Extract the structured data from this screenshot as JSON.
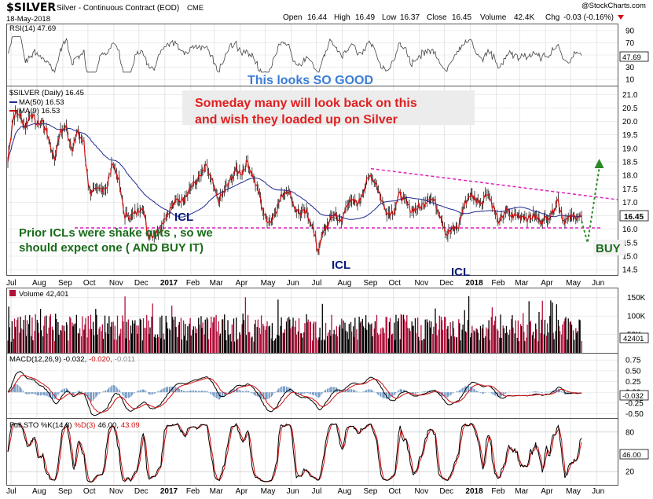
{
  "header": {
    "title": "$SILVER",
    "subtitle": "Silver - Continuous Contract (EOD)",
    "exchange": "CME",
    "date": "18-May-2018",
    "open_label": "Open",
    "open": "16.44",
    "high_label": "High",
    "high": "16.49",
    "low_label": "Low",
    "low": "16.37",
    "close_label": "Close",
    "close": "16.45",
    "volume_label": "Volume",
    "volume": "42.4K",
    "chg_label": "Chg",
    "chg": "-0.03 (-0.16%)",
    "logo": "@StockCharts.com"
  },
  "rsi_panel": {
    "label": "RSI(14) 47.69",
    "ticks": [
      "90",
      "70",
      "50",
      "30",
      "10"
    ],
    "last_badge": "47.69"
  },
  "price_panel": {
    "label": "$SILVER (Daily) 16.45",
    "legend": [
      {
        "text": "MA(50) 16.53",
        "color": "#1f2a8f"
      },
      {
        "text": "MA(9) 16.53",
        "color": "#d01010"
      }
    ],
    "ticks": [
      "21.0",
      "20.5",
      "20.0",
      "19.5",
      "19.0",
      "18.5",
      "18.0",
      "17.5",
      "17.0",
      "16.5",
      "16.0",
      "15.5",
      "15.0",
      "14.5"
    ],
    "last_badge": "16.45"
  },
  "volume_panel": {
    "label": "Volume 42,401",
    "ticks": [
      "150K",
      "100K",
      "50K"
    ],
    "last_badge": "42401"
  },
  "macd_panel": {
    "label_main": "MACD(12,26,9) -0.032,",
    "label_red": "-0.020,",
    "label_gray": "-0.011",
    "ticks": [
      "0.75",
      "0.50",
      "0.25",
      "0.00",
      "-0.25",
      "-0.50"
    ],
    "last_badge": "-0.032"
  },
  "sto_panel": {
    "label_main": "Full STO %K(14,3)",
    "label_red": "%D(3)",
    "label_val1": "46.00,",
    "label_val2": "43.09",
    "ticks": [
      "80",
      "20"
    ],
    "last_badge": "46.00"
  },
  "x_axis": {
    "labels": [
      {
        "text": "Jul",
        "bold": false
      },
      {
        "text": "Aug",
        "bold": false
      },
      {
        "text": "Sep",
        "bold": false
      },
      {
        "text": "Oct",
        "bold": false
      },
      {
        "text": "Nov",
        "bold": false
      },
      {
        "text": "Dec",
        "bold": false
      },
      {
        "text": "2017",
        "bold": true
      },
      {
        "text": "Feb",
        "bold": false
      },
      {
        "text": "Mar",
        "bold": false
      },
      {
        "text": "Apr",
        "bold": false
      },
      {
        "text": "May",
        "bold": false
      },
      {
        "text": "Jun",
        "bold": false
      },
      {
        "text": "Jul",
        "bold": false
      },
      {
        "text": "Aug",
        "bold": false
      },
      {
        "text": "Sep",
        "bold": false
      },
      {
        "text": "Oct",
        "bold": false
      },
      {
        "text": "Nov",
        "bold": false
      },
      {
        "text": "Dec",
        "bold": false
      },
      {
        "text": "2018",
        "bold": true
      },
      {
        "text": "Feb",
        "bold": false
      },
      {
        "text": "Mar",
        "bold": false
      },
      {
        "text": "Apr",
        "bold": false
      },
      {
        "text": "May",
        "bold": false
      },
      {
        "text": "Jun",
        "bold": false
      }
    ]
  },
  "annotations": {
    "rsi_note": "This looks SO GOOD",
    "red_note_1": "Someday many will look back on this",
    "red_note_2": "and wish they loaded up on Silver",
    "green_note_1": "Prior ICLs were shake outs , so we",
    "green_note_2": "should expect one ( AND BUY IT)",
    "icl_1": "ICL",
    "icl_2": "ICL",
    "icl_3": "ICL",
    "buy": "BUY"
  },
  "colors": {
    "price_line": "#d01010",
    "bar_ticks": "#000000",
    "ma50": "#1f2a8f",
    "ma9": "#d01010",
    "support_line": "#e020c0",
    "resistance_line": "#e020c0",
    "volume_up": "#000000",
    "volume_down": "#b0103a",
    "macd_line": "#000000",
    "signal_line": "#d01010",
    "histogram": "#7aa0c8",
    "buy_arrow": "#2a8a2a"
  },
  "chart_data": {
    "type": "line",
    "symbol": "$SILVER",
    "x_range": [
      "2016-07",
      "2018-05-18"
    ],
    "price_ylim": [
      14.3,
      21.3
    ],
    "price_points": [
      {
        "date": "2016-07-01",
        "close": 18.5
      },
      {
        "date": "2016-07-08",
        "close": 20.2
      },
      {
        "date": "2016-07-15",
        "close": 20.3
      },
      {
        "date": "2016-07-22",
        "close": 19.8
      },
      {
        "date": "2016-07-29",
        "close": 20.3
      },
      {
        "date": "2016-08-05",
        "close": 19.9
      },
      {
        "date": "2016-08-12",
        "close": 20.0
      },
      {
        "date": "2016-08-19",
        "close": 19.4
      },
      {
        "date": "2016-08-26",
        "close": 18.6
      },
      {
        "date": "2016-09-02",
        "close": 19.6
      },
      {
        "date": "2016-09-09",
        "close": 19.8
      },
      {
        "date": "2016-09-16",
        "close": 19.0
      },
      {
        "date": "2016-09-23",
        "close": 19.6
      },
      {
        "date": "2016-09-30",
        "close": 19.2
      },
      {
        "date": "2016-10-07",
        "close": 17.4
      },
      {
        "date": "2016-10-14",
        "close": 17.4
      },
      {
        "date": "2016-10-21",
        "close": 17.5
      },
      {
        "date": "2016-10-28",
        "close": 17.6
      },
      {
        "date": "2016-11-04",
        "close": 18.5
      },
      {
        "date": "2016-11-11",
        "close": 17.8
      },
      {
        "date": "2016-11-18",
        "close": 16.5
      },
      {
        "date": "2016-11-25",
        "close": 16.5
      },
      {
        "date": "2016-12-02",
        "close": 16.6
      },
      {
        "date": "2016-12-09",
        "close": 16.9
      },
      {
        "date": "2016-12-16",
        "close": 15.8
      },
      {
        "date": "2016-12-23",
        "close": 15.8
      },
      {
        "date": "2016-12-30",
        "close": 16.0
      },
      {
        "date": "2017-01-06",
        "close": 16.5
      },
      {
        "date": "2017-01-13",
        "close": 16.8
      },
      {
        "date": "2017-01-20",
        "close": 17.1
      },
      {
        "date": "2017-01-27",
        "close": 17.1
      },
      {
        "date": "2017-02-03",
        "close": 17.5
      },
      {
        "date": "2017-02-10",
        "close": 17.7
      },
      {
        "date": "2017-02-17",
        "close": 18.0
      },
      {
        "date": "2017-02-24",
        "close": 18.3
      },
      {
        "date": "2017-03-03",
        "close": 17.7
      },
      {
        "date": "2017-03-10",
        "close": 17.0
      },
      {
        "date": "2017-03-17",
        "close": 17.4
      },
      {
        "date": "2017-03-24",
        "close": 17.8
      },
      {
        "date": "2017-03-31",
        "close": 18.2
      },
      {
        "date": "2017-04-07",
        "close": 18.1
      },
      {
        "date": "2017-04-14",
        "close": 18.5
      },
      {
        "date": "2017-04-21",
        "close": 17.9
      },
      {
        "date": "2017-04-28",
        "close": 17.3
      },
      {
        "date": "2017-05-05",
        "close": 16.4
      },
      {
        "date": "2017-05-12",
        "close": 16.3
      },
      {
        "date": "2017-05-19",
        "close": 16.8
      },
      {
        "date": "2017-05-26",
        "close": 17.3
      },
      {
        "date": "2017-06-02",
        "close": 17.5
      },
      {
        "date": "2017-06-09",
        "close": 16.8
      },
      {
        "date": "2017-06-16",
        "close": 16.6
      },
      {
        "date": "2017-06-23",
        "close": 16.6
      },
      {
        "date": "2017-06-30",
        "close": 16.2
      },
      {
        "date": "2017-07-07",
        "close": 15.2
      },
      {
        "date": "2017-07-14",
        "close": 15.9
      },
      {
        "date": "2017-07-21",
        "close": 16.3
      },
      {
        "date": "2017-07-28",
        "close": 16.6
      },
      {
        "date": "2017-08-04",
        "close": 16.2
      },
      {
        "date": "2017-08-11",
        "close": 17.0
      },
      {
        "date": "2017-08-18",
        "close": 17.0
      },
      {
        "date": "2017-08-25",
        "close": 17.0
      },
      {
        "date": "2017-09-01",
        "close": 17.6
      },
      {
        "date": "2017-09-08",
        "close": 18.0
      },
      {
        "date": "2017-09-15",
        "close": 17.7
      },
      {
        "date": "2017-09-22",
        "close": 17.0
      },
      {
        "date": "2017-09-29",
        "close": 16.6
      },
      {
        "date": "2017-10-06",
        "close": 16.7
      },
      {
        "date": "2017-10-13",
        "close": 17.3
      },
      {
        "date": "2017-10-20",
        "close": 17.0
      },
      {
        "date": "2017-10-27",
        "close": 16.7
      },
      {
        "date": "2017-11-03",
        "close": 16.8
      },
      {
        "date": "2017-11-10",
        "close": 16.9
      },
      {
        "date": "2017-11-17",
        "close": 17.2
      },
      {
        "date": "2017-11-24",
        "close": 17.0
      },
      {
        "date": "2017-12-01",
        "close": 16.5
      },
      {
        "date": "2017-12-08",
        "close": 15.8
      },
      {
        "date": "2017-12-15",
        "close": 16.0
      },
      {
        "date": "2017-12-22",
        "close": 16.1
      },
      {
        "date": "2017-12-29",
        "close": 16.9
      },
      {
        "date": "2018-01-05",
        "close": 17.3
      },
      {
        "date": "2018-01-12",
        "close": 17.1
      },
      {
        "date": "2018-01-19",
        "close": 17.0
      },
      {
        "date": "2018-01-26",
        "close": 17.4
      },
      {
        "date": "2018-02-02",
        "close": 16.8
      },
      {
        "date": "2018-02-09",
        "close": 16.2
      },
      {
        "date": "2018-02-16",
        "close": 16.7
      },
      {
        "date": "2018-02-23",
        "close": 16.5
      },
      {
        "date": "2018-03-02",
        "close": 16.5
      },
      {
        "date": "2018-03-09",
        "close": 16.5
      },
      {
        "date": "2018-03-16",
        "close": 16.4
      },
      {
        "date": "2018-03-23",
        "close": 16.5
      },
      {
        "date": "2018-03-30",
        "close": 16.3
      },
      {
        "date": "2018-04-06",
        "close": 16.4
      },
      {
        "date": "2018-04-13",
        "close": 16.6
      },
      {
        "date": "2018-04-20",
        "close": 17.1
      },
      {
        "date": "2018-04-27",
        "close": 16.3
      },
      {
        "date": "2018-05-04",
        "close": 16.4
      },
      {
        "date": "2018-05-11",
        "close": 16.5
      },
      {
        "date": "2018-05-18",
        "close": 16.45
      }
    ],
    "support_level": 16.05,
    "resistance_line": [
      {
        "date": "2017-09-08",
        "value": 18.25
      },
      {
        "date": "2018-05-31",
        "value": 17.1
      }
    ],
    "projection": [
      {
        "date": "2018-05-18",
        "value": 16.3
      },
      {
        "date": "2018-05-25",
        "value": 15.5
      },
      {
        "date": "2018-06-08",
        "value": 18.5
      }
    ],
    "rsi_ylim": [
      0,
      100
    ],
    "volume_ylim": [
      0,
      175000
    ],
    "macd_ylim": [
      -0.6,
      0.9
    ],
    "sto_ylim": [
      0,
      100
    ]
  }
}
